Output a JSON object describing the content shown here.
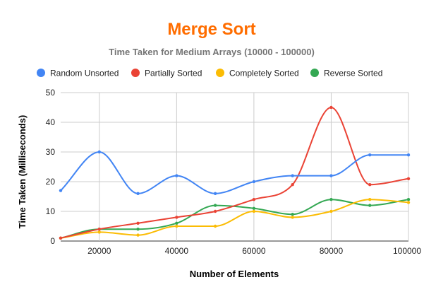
{
  "chart_data": {
    "type": "line",
    "title": "Merge Sort",
    "subtitle": "Time Taken for Medium Arrays (10000 - 100000)",
    "xlabel": "Number of Elements",
    "ylabel": "Time Taken (Milliseconds)",
    "xlim": [
      10000,
      100000
    ],
    "ylim": [
      0,
      50
    ],
    "x_ticks": [
      20000,
      40000,
      60000,
      80000,
      100000
    ],
    "y_ticks": [
      0,
      10,
      20,
      30,
      40,
      50
    ],
    "x_tick_labels": [
      "20000",
      "40000",
      "60000",
      "80000",
      "100000"
    ],
    "y_tick_labels": [
      "0",
      "10",
      "20",
      "30",
      "40",
      "50"
    ],
    "grid": true,
    "legend_position": "top",
    "smooth": true,
    "x": [
      10000,
      20000,
      30000,
      40000,
      50000,
      60000,
      70000,
      80000,
      90000,
      100000
    ],
    "series": [
      {
        "name": "Random Unsorted",
        "color": "#4285f4",
        "values": [
          17,
          30,
          16,
          22,
          16,
          20,
          22,
          22,
          29,
          29
        ]
      },
      {
        "name": "Partially Sorted",
        "color": "#ea4335",
        "values": [
          1,
          4,
          6,
          8,
          10,
          14,
          19,
          45,
          19,
          21
        ]
      },
      {
        "name": "Completely Sorted",
        "color": "#fbbc04",
        "values": [
          1,
          3,
          2,
          5,
          5,
          10,
          8,
          10,
          14,
          13
        ]
      },
      {
        "name": "Reverse Sorted",
        "color": "#34a853",
        "values": [
          1,
          4,
          4,
          6,
          12,
          11,
          9,
          14,
          12,
          14
        ]
      }
    ],
    "title_color": "#ff6d00",
    "subtitle_color": "#757575"
  }
}
